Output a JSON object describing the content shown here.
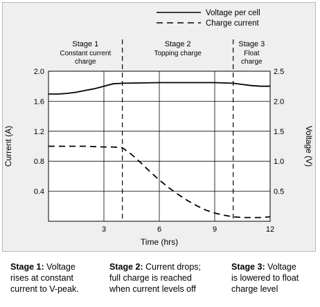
{
  "chart_data": {
    "type": "line",
    "xlabel": "Time (hrs)",
    "ylabel": "Current (A)",
    "y2label": "Voltage (V)",
    "xlim": [
      0,
      12
    ],
    "ylim": [
      0,
      2.0
    ],
    "y2lim": [
      0,
      2.5
    ],
    "x_ticks": [
      "3",
      "6",
      "9",
      "12"
    ],
    "y_ticks": [
      "0.4",
      "0.8",
      "1.2",
      "1.6",
      "2.0"
    ],
    "y2_ticks": [
      "0.5",
      "1.0",
      "1.5",
      "2.0",
      "2.5"
    ],
    "grid": true,
    "legend_position": "top-right",
    "series": [
      {
        "name": "Voltage per cell",
        "axis": "right",
        "style": "solid",
        "x": [
          0,
          0.5,
          1,
          1.5,
          2,
          2.5,
          3,
          3.5,
          4,
          6,
          8,
          9,
          10,
          10.5,
          11,
          11.5,
          12
        ],
        "y": [
          2.12,
          2.12,
          2.13,
          2.15,
          2.18,
          2.21,
          2.25,
          2.29,
          2.3,
          2.31,
          2.31,
          2.31,
          2.3,
          2.28,
          2.26,
          2.25,
          2.25
        ]
      },
      {
        "name": "Charge current",
        "axis": "left",
        "style": "dashed",
        "x": [
          0,
          1,
          2,
          3,
          3.5,
          4,
          4.5,
          5,
          5.5,
          6,
          6.5,
          7,
          7.5,
          8,
          8.5,
          9,
          9.5,
          10,
          10.5,
          11,
          11.5,
          12
        ],
        "y": [
          1.0,
          1.0,
          1.0,
          0.99,
          0.99,
          0.98,
          0.89,
          0.78,
          0.66,
          0.55,
          0.45,
          0.36,
          0.28,
          0.21,
          0.15,
          0.11,
          0.08,
          0.06,
          0.05,
          0.05,
          0.05,
          0.06
        ]
      }
    ],
    "stage_dividers": [
      4,
      10
    ],
    "stages": [
      {
        "title": "Stage 1",
        "subtitle": [
          "Constant current",
          "charge"
        ],
        "center": 2
      },
      {
        "title": "Stage 2",
        "subtitle": [
          "Topping charge"
        ],
        "center": 7
      },
      {
        "title": "Stage 3",
        "subtitle": [
          "Float",
          "charge"
        ],
        "center": 11
      }
    ]
  },
  "captions": [
    {
      "bold": "Stage 1:",
      "text": [
        " Voltage",
        "rises at constant",
        "current to V-peak."
      ]
    },
    {
      "bold": "Stage 2:",
      "text": [
        " Current drops;",
        "full charge is reached",
        "when current levels off"
      ]
    },
    {
      "bold": "Stage 3:",
      "text": [
        " Voltage",
        "is lowered to float",
        "charge level"
      ]
    }
  ]
}
